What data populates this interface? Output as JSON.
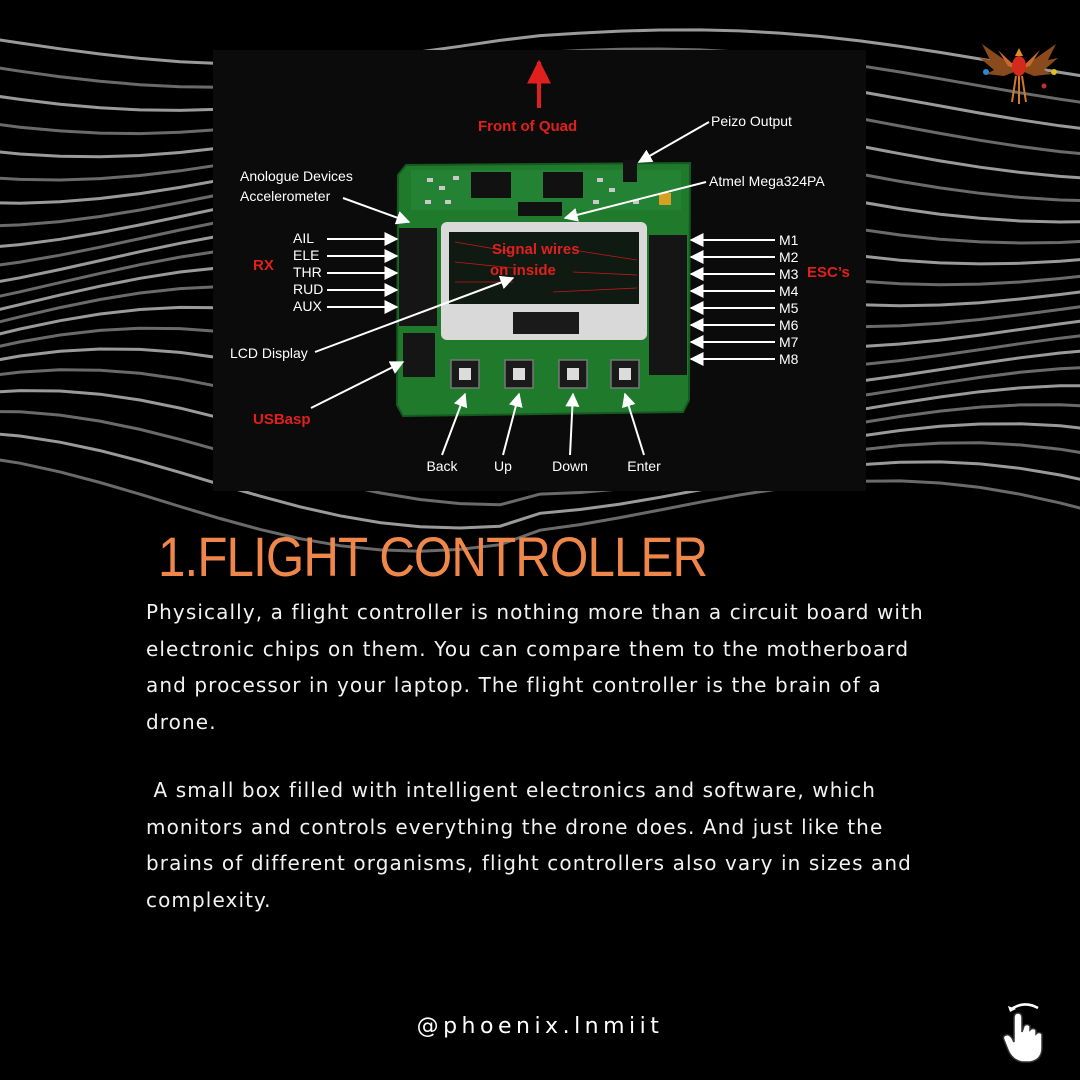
{
  "diagram": {
    "front_label": "Front of Quad",
    "signal_label_1": "Signal wires",
    "signal_label_2": "on inside",
    "rx_label": "RX",
    "esc_label": "ESC’s",
    "usbasp_label": "USBasp",
    "callouts": {
      "peizo": "Peizo Output",
      "atmel": "Atmel Mega324PA",
      "accel_1": "Anologue Devices",
      "accel_2": "Accelerometer",
      "lcd": "LCD Display"
    },
    "rx_pins": [
      "AIL",
      "ELE",
      "THR",
      "RUD",
      "AUX"
    ],
    "esc_pins": [
      "M1",
      "M2",
      "M3",
      "M4",
      "M5",
      "M6",
      "M7",
      "M8"
    ],
    "buttons": [
      "Back",
      "Up",
      "Down",
      "Enter"
    ]
  },
  "heading": "1.FLIGHT CONTROLLER",
  "paragraphs": [
    "Physically, a flight controller is nothing more than a circuit board with electronic chips on them. You can compare them to the motherboard and processor in your laptop. The flight controller is the brain of a drone.",
    " A small box filled with intelligent electronics and software, which monitors and controls everything the drone does. And just like the brains of different organisms, flight controllers also vary in sizes and complexity."
  ],
  "handle": "@phoenix.lnmiit",
  "icons": {
    "logo": "phoenix-logo-icon",
    "swipe": "swipe-hand-icon"
  },
  "colors": {
    "background": "#000000",
    "accent": "#f0874a",
    "label_red": "#e0201c",
    "pcb_green": "#1f7a2c"
  }
}
